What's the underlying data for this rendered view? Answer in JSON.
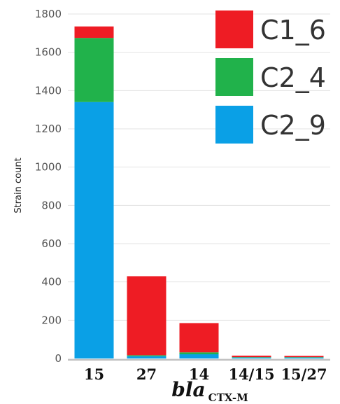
{
  "chart_data": {
    "type": "bar",
    "stacked": true,
    "categories": [
      "15",
      "27",
      "14",
      "14/15",
      "15/27"
    ],
    "series": [
      {
        "name": "C2_9",
        "color": "#0aa0e6",
        "values": [
          1340,
          12,
          22,
          5,
          5
        ]
      },
      {
        "name": "C2_4",
        "color": "#21b24b",
        "values": [
          335,
          5,
          10,
          2,
          2
        ]
      },
      {
        "name": "C1_6",
        "color": "#ee1c24",
        "values": [
          60,
          413,
          153,
          8,
          7
        ]
      }
    ],
    "ylabel": "Strain count",
    "xlabel_main": "bla",
    "xlabel_sub": "CTX-M",
    "ylim": [
      0,
      1800
    ],
    "yticks": [
      0,
      200,
      400,
      600,
      800,
      1000,
      1200,
      1400,
      1600,
      1800
    ],
    "grid": true,
    "legend_position": "top-right",
    "legend_order": [
      "C1_6",
      "C2_4",
      "C2_9"
    ]
  }
}
